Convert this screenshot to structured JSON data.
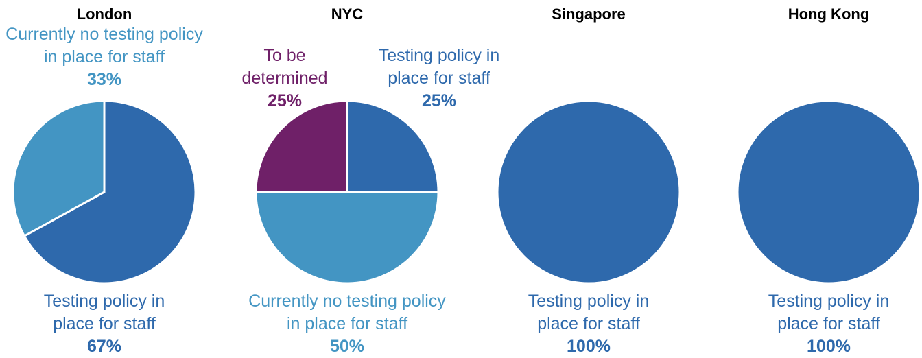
{
  "chart_data": [
    {
      "type": "pie",
      "title": "London",
      "categories": [
        "Testing policy in place for staff",
        "Currently no testing policy in place for staff"
      ],
      "values": [
        67,
        33
      ],
      "value_labels": [
        "67%",
        "33%"
      ],
      "colors": [
        "#2e69ac",
        "#4395c3"
      ]
    },
    {
      "type": "pie",
      "title": "NYC",
      "categories": [
        "Testing policy in place for staff",
        "Currently no testing policy in place for staff",
        "To be determined"
      ],
      "values": [
        25,
        50,
        25
      ],
      "value_labels": [
        "25%",
        "50%",
        "25%"
      ],
      "colors": [
        "#2e69ac",
        "#4395c3",
        "#6f2068"
      ]
    },
    {
      "type": "pie",
      "title": "Singapore",
      "categories": [
        "Testing policy in place for staff"
      ],
      "values": [
        100
      ],
      "value_labels": [
        "100%"
      ],
      "colors": [
        "#2e69ac"
      ]
    },
    {
      "type": "pie",
      "title": "Hong Kong",
      "categories": [
        "Testing policy in place for staff"
      ],
      "values": [
        100
      ],
      "value_labels": [
        "100%"
      ],
      "colors": [
        "#2e69ac"
      ]
    }
  ]
}
